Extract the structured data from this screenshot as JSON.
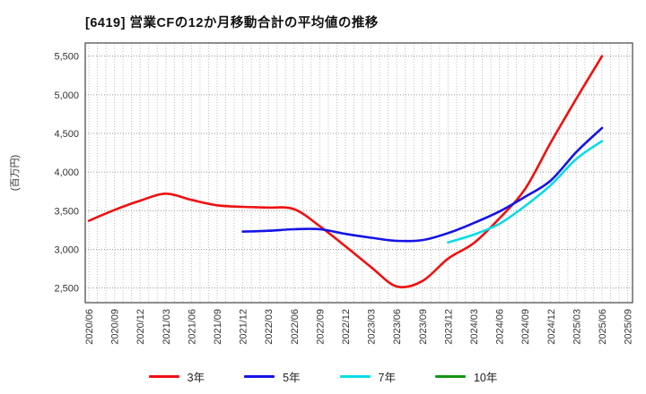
{
  "chart_data": {
    "type": "line",
    "title": "[6419]  営業CFの12か月移動合計の平均値の推移",
    "ylabel": "(百万円)",
    "xlabel": "",
    "categories": [
      "2020/06",
      "2020/09",
      "2020/12",
      "2021/03",
      "2021/06",
      "2021/09",
      "2021/12",
      "2022/03",
      "2022/06",
      "2022/09",
      "2022/12",
      "2023/03",
      "2023/06",
      "2023/09",
      "2023/12",
      "2024/03",
      "2024/06",
      "2024/09",
      "2024/12",
      "2025/03",
      "2025/06",
      "2025/09"
    ],
    "yticks": [
      2500,
      3000,
      3500,
      4000,
      4500,
      5000,
      5500
    ],
    "ylim": [
      2310,
      5670
    ],
    "grid": "dotted; horizontal at 500 steps, vertical monthly minor",
    "legend_position": "bottom",
    "series": [
      {
        "name": "3年",
        "color": "#ef1010",
        "values": [
          3370,
          3510,
          3630,
          3720,
          3640,
          3570,
          3550,
          3540,
          3520,
          3300,
          3040,
          2770,
          2520,
          2590,
          2880,
          3080,
          3400,
          3780,
          4380,
          4950,
          5500,
          null
        ]
      },
      {
        "name": "5年",
        "color": "#1414e6",
        "values": [
          null,
          null,
          null,
          null,
          null,
          null,
          3230,
          3240,
          3260,
          3260,
          3200,
          3150,
          3110,
          3120,
          3210,
          3340,
          3490,
          3680,
          3890,
          4260,
          4570,
          null
        ]
      },
      {
        "name": "7年",
        "color": "#0adbe6",
        "values": [
          null,
          null,
          null,
          null,
          null,
          null,
          null,
          null,
          null,
          null,
          null,
          null,
          null,
          null,
          3090,
          3190,
          3330,
          3560,
          3830,
          4170,
          4400,
          null
        ]
      },
      {
        "name": "10年",
        "color": "#159415",
        "values": [
          null,
          null,
          null,
          null,
          null,
          null,
          null,
          null,
          null,
          null,
          null,
          null,
          null,
          null,
          null,
          null,
          null,
          null,
          null,
          null,
          null,
          null
        ]
      }
    ]
  }
}
